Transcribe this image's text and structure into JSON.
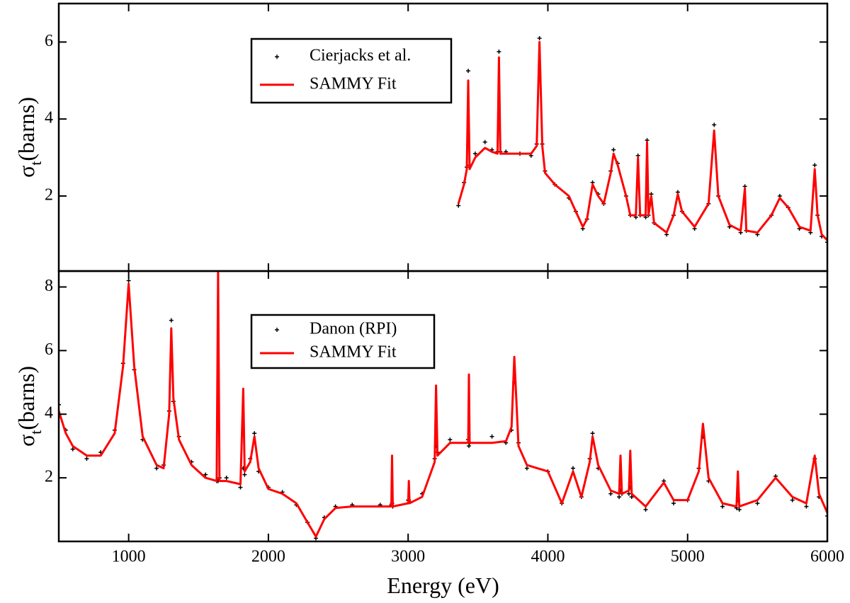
{
  "chart_data": [
    {
      "type": "line",
      "x": [
        3360,
        3400,
        3420,
        3430,
        3440,
        3480,
        3550,
        3600,
        3640,
        3650,
        3660,
        3700,
        3800,
        3880,
        3920,
        3940,
        3960,
        3980,
        4050,
        4150,
        4200,
        4250,
        4280,
        4320,
        4360,
        4400,
        4450,
        4470,
        4500,
        4560,
        4590,
        4630,
        4645,
        4660,
        4700,
        4710,
        4720,
        4740,
        4760,
        4850,
        4900,
        4930,
        4960,
        5050,
        5150,
        5190,
        5220,
        5300,
        5380,
        5410,
        5420,
        5500,
        5600,
        5660,
        5720,
        5800,
        5880,
        5910,
        5930,
        5960,
        6000
      ],
      "series": [
        {
          "name": "Cierjacks et al.",
          "mode": "markers",
          "color": "#000000",
          "values": [
            1.75,
            2.35,
            2.75,
            5.25,
            2.8,
            3.1,
            3.4,
            3.2,
            3.15,
            5.75,
            3.15,
            3.15,
            3.1,
            3.05,
            3.35,
            6.1,
            3.35,
            2.65,
            2.3,
            1.95,
            1.6,
            1.15,
            1.4,
            2.35,
            2.05,
            1.8,
            2.65,
            3.2,
            2.85,
            2.0,
            1.5,
            1.45,
            3.05,
            1.5,
            1.45,
            3.45,
            1.5,
            2.05,
            1.3,
            1.0,
            1.5,
            2.1,
            1.6,
            1.15,
            1.8,
            3.85,
            2.0,
            1.2,
            1.05,
            2.25,
            1.1,
            1.0,
            1.5,
            2.0,
            1.7,
            1.15,
            1.05,
            2.8,
            1.5,
            0.95,
            0.8
          ]
        },
        {
          "name": "SAMMY Fit",
          "mode": "line",
          "color": "#ff0000",
          "values": [
            1.8,
            2.3,
            2.7,
            5.0,
            2.7,
            3.0,
            3.25,
            3.15,
            3.1,
            5.6,
            3.1,
            3.1,
            3.1,
            3.1,
            3.3,
            6.0,
            3.3,
            2.6,
            2.3,
            2.0,
            1.6,
            1.2,
            1.4,
            2.3,
            2.0,
            1.8,
            2.6,
            3.1,
            2.8,
            2.0,
            1.5,
            1.5,
            3.0,
            1.5,
            1.5,
            3.4,
            1.5,
            2.0,
            1.3,
            1.05,
            1.5,
            2.05,
            1.6,
            1.2,
            1.8,
            3.7,
            2.0,
            1.25,
            1.1,
            2.2,
            1.1,
            1.05,
            1.5,
            1.95,
            1.7,
            1.2,
            1.1,
            2.7,
            1.5,
            1.0,
            0.85
          ]
        }
      ],
      "y_label": [
        "σ",
        "t",
        "(barns)"
      ],
      "xlim": [
        500,
        6000
      ],
      "xticks": [
        1000,
        2000,
        3000,
        4000,
        5000,
        6000
      ],
      "xtick_labels": false,
      "ylim": [
        0.05,
        7
      ],
      "yticks": [
        2,
        4,
        6
      ]
    },
    {
      "type": "line",
      "x": [
        500,
        550,
        600,
        700,
        800,
        900,
        960,
        1000,
        1040,
        1100,
        1200,
        1250,
        1290,
        1305,
        1320,
        1360,
        1450,
        1550,
        1630,
        1640,
        1650,
        1700,
        1800,
        1820,
        1830,
        1870,
        1900,
        1930,
        2000,
        2100,
        2200,
        2280,
        2340,
        2400,
        2480,
        2600,
        2800,
        2880,
        2885,
        2890,
        3000,
        3005,
        3010,
        3100,
        3190,
        3200,
        3210,
        3300,
        3430,
        3435,
        3440,
        3600,
        3700,
        3740,
        3760,
        3790,
        3850,
        4000,
        4100,
        4180,
        4240,
        4300,
        4320,
        4360,
        4450,
        4510,
        4520,
        4530,
        4580,
        4590,
        4600,
        4700,
        4830,
        4900,
        5000,
        5080,
        5110,
        5150,
        5250,
        5350,
        5360,
        5370,
        5500,
        5630,
        5750,
        5850,
        5910,
        5940,
        6000
      ],
      "series": [
        {
          "name": "Danon (RPI)",
          "mode": "markers",
          "color": "#000000",
          "values": [
            4.3,
            3.5,
            2.9,
            2.6,
            2.8,
            3.5,
            5.6,
            8.2,
            5.4,
            3.2,
            2.3,
            2.4,
            4.1,
            6.95,
            4.4,
            3.3,
            2.5,
            2.1,
            1.9,
            1.9,
            2.0,
            2.0,
            1.7,
            2.3,
            2.1,
            2.6,
            3.4,
            2.2,
            1.7,
            1.55,
            1.15,
            0.6,
            0.1,
            0.75,
            1.1,
            1.15,
            1.15,
            1.15,
            1.2,
            1.1,
            1.3,
            1.3,
            1.25,
            1.5,
            2.6,
            3.0,
            2.8,
            3.2,
            3.2,
            3.0,
            3.1,
            3.3,
            3.1,
            3.5,
            5.0,
            3.1,
            2.3,
            2.2,
            1.2,
            2.3,
            1.4,
            2.6,
            3.4,
            2.3,
            1.5,
            1.4,
            1.6,
            1.5,
            1.5,
            1.7,
            1.4,
            1.0,
            1.9,
            1.2,
            1.3,
            2.3,
            3.3,
            1.9,
            1.1,
            1.05,
            1.3,
            1.0,
            1.2,
            2.05,
            1.3,
            1.1,
            2.6,
            1.4,
            0.8
          ]
        },
        {
          "name": "SAMMY Fit",
          "mode": "line",
          "color": "#ff0000",
          "values": [
            4.1,
            3.4,
            3.0,
            2.7,
            2.7,
            3.4,
            5.5,
            8.1,
            5.5,
            3.3,
            2.4,
            2.3,
            4.0,
            6.7,
            4.5,
            3.2,
            2.4,
            2.0,
            1.9,
            8.5,
            1.9,
            1.9,
            1.8,
            4.8,
            2.2,
            2.5,
            3.3,
            2.3,
            1.65,
            1.5,
            1.2,
            0.6,
            0.15,
            0.7,
            1.05,
            1.1,
            1.1,
            1.1,
            2.7,
            1.1,
            1.2,
            1.9,
            1.2,
            1.4,
            2.5,
            4.9,
            2.7,
            3.1,
            3.1,
            5.25,
            3.1,
            3.1,
            3.15,
            3.6,
            5.8,
            3.0,
            2.4,
            2.2,
            1.2,
            2.2,
            1.4,
            2.5,
            3.3,
            2.4,
            1.6,
            1.5,
            2.7,
            1.5,
            1.6,
            2.85,
            1.5,
            1.1,
            1.85,
            1.3,
            1.3,
            2.2,
            3.7,
            2.0,
            1.2,
            1.1,
            2.2,
            1.1,
            1.3,
            2.0,
            1.4,
            1.2,
            2.7,
            1.5,
            0.9
          ]
        }
      ],
      "y_label": [
        "σ",
        "t",
        "(barns)"
      ],
      "x_label": "Energy (eV)",
      "xlim": [
        500,
        6000
      ],
      "xticks": [
        1000,
        2000,
        3000,
        4000,
        5000,
        6000
      ],
      "xtick_labels": true,
      "ylim": [
        0,
        8.5
      ],
      "yticks": [
        2,
        4,
        6,
        8
      ]
    }
  ]
}
